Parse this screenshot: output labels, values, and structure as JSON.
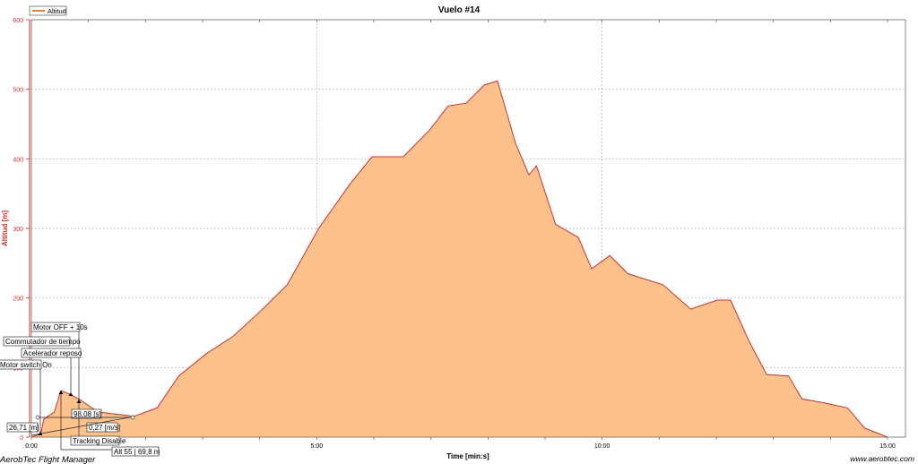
{
  "chart_data": {
    "type": "area",
    "title": "Vuelo #14",
    "xlabel": "Time [min:s]",
    "ylabel": "Altitud [m]",
    "xlim": [
      0,
      900
    ],
    "ylim": [
      0,
      600
    ],
    "x_ticks": [
      {
        "v": 0,
        "label": "0:00"
      },
      {
        "v": 300,
        "label": "5:00"
      },
      {
        "v": 600,
        "label": "10:00"
      },
      {
        "v": 900,
        "label": "15:00"
      }
    ],
    "y_ticks": [
      0,
      100,
      200,
      300,
      400,
      500,
      600
    ],
    "grid": true,
    "legend": {
      "placement": "top-left",
      "entries": [
        "Altitud"
      ]
    },
    "series": [
      {
        "name": "Altitud",
        "x": [
          0,
          10,
          13,
          24,
          31,
          40,
          52,
          70,
          108,
          132,
          155,
          184,
          212,
          240,
          269,
          302,
          335,
          358,
          391,
          419,
          438,
          457,
          476,
          490,
          509,
          523,
          531,
          551,
          575,
          589,
          608,
          627,
          664,
          693,
          721,
          735,
          754,
          773,
          796,
          810,
          834,
          858,
          876,
          900
        ],
        "values": [
          0,
          5,
          26,
          36,
          67,
          62,
          53,
          36,
          30,
          42,
          88,
          120,
          145,
          180,
          219,
          300,
          364,
          403,
          403,
          442,
          476,
          480,
          506,
          512,
          422,
          377,
          390,
          306,
          287,
          242,
          261,
          235,
          219,
          184,
          197,
          197,
          139,
          90,
          88,
          55,
          49,
          42,
          13,
          0
        ]
      }
    ],
    "annotations": [
      {
        "label": "Motor OFF + 10s",
        "x": 52
      },
      {
        "label": "Commutador de tiempo",
        "x": 40
      },
      {
        "label": "Acelerador reposo",
        "x": 40
      },
      {
        "label": "Motor switch On",
        "x": 10
      },
      {
        "label": "26,71 [m]"
      },
      {
        "label": "98,08 [s]"
      },
      {
        "label": "0,27 [m/s]"
      },
      {
        "label": "Tracking Disable",
        "x": 52
      },
      {
        "label": "Alt 55 | 69,8 m",
        "x": 31
      }
    ]
  },
  "colors": {
    "fill": "#fdc28c",
    "line": "#c83232",
    "axis": "#d03030",
    "grid": "#999999"
  },
  "footer": {
    "left": "AerobTec Flight Manager",
    "right": "www.aerobtec.com"
  }
}
